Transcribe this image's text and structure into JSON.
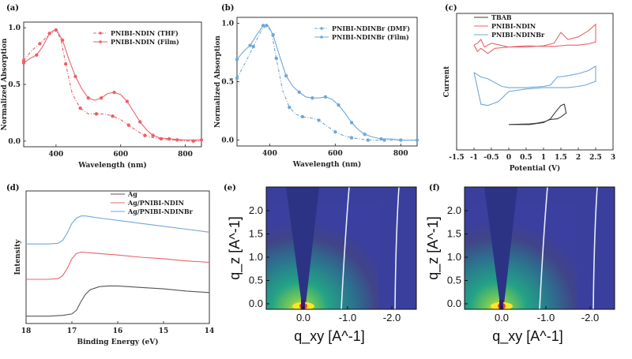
{
  "chart_data": [
    {
      "panel": "(a)",
      "type": "line",
      "xlabel": "Wavelength (nm)",
      "ylabel": "Normalized Absorption",
      "xlim": [
        300,
        850
      ],
      "ylim": [
        -0.05,
        1.05
      ],
      "xticks": [
        400,
        600,
        800
      ],
      "yticks": [
        0.0,
        0.5,
        1.0
      ],
      "legend_position": "top-right",
      "series": [
        {
          "name": "PNIBI-NDIN (THF)",
          "style": "dash-dot",
          "color": "#e8636a",
          "x": [
            300,
            325,
            350,
            375,
            400,
            415,
            430,
            450,
            475,
            500,
            525,
            550,
            575,
            600,
            625,
            650,
            675,
            700,
            725,
            750,
            775,
            800,
            825,
            850
          ],
          "y": [
            0.71,
            0.8,
            0.86,
            0.93,
            0.98,
            0.9,
            0.68,
            0.42,
            0.29,
            0.24,
            0.24,
            0.24,
            0.22,
            0.19,
            0.14,
            0.09,
            0.05,
            0.03,
            0.02,
            0.01,
            0.01,
            0.0,
            0.0,
            0.0
          ]
        },
        {
          "name": "PNIBI-NDIN (Film)",
          "style": "solid",
          "color": "#e8636a",
          "x": [
            300,
            320,
            340,
            360,
            380,
            400,
            420,
            440,
            460,
            480,
            500,
            520,
            540,
            560,
            580,
            600,
            620,
            640,
            660,
            680,
            700,
            720,
            750,
            800,
            850
          ],
          "y": [
            0.69,
            0.73,
            0.76,
            0.84,
            0.95,
            0.99,
            0.89,
            0.72,
            0.57,
            0.46,
            0.38,
            0.36,
            0.38,
            0.42,
            0.43,
            0.41,
            0.35,
            0.26,
            0.17,
            0.1,
            0.05,
            0.03,
            0.02,
            0.01,
            0.01
          ]
        }
      ]
    },
    {
      "panel": "(b)",
      "type": "line",
      "xlabel": "Wavelength (nm)",
      "ylabel": "Normalized Absorption",
      "xlim": [
        300,
        850
      ],
      "ylim": [
        -0.05,
        1.05
      ],
      "xticks": [
        400,
        600,
        800
      ],
      "yticks": [
        0.0,
        0.5,
        1.0
      ],
      "legend_position": "top-right",
      "series": [
        {
          "name": "PNIBI-NDINBr (DMF)",
          "style": "dash-dot",
          "color": "#6fa8d8",
          "x": [
            300,
            325,
            350,
            375,
            390,
            405,
            420,
            440,
            460,
            480,
            500,
            525,
            550,
            575,
            600,
            625,
            650,
            675,
            700,
            725,
            750,
            800,
            850
          ],
          "y": [
            0.53,
            0.66,
            0.8,
            0.94,
            0.98,
            0.93,
            0.7,
            0.42,
            0.28,
            0.22,
            0.2,
            0.19,
            0.17,
            0.12,
            0.07,
            0.04,
            0.02,
            0.01,
            0.0,
            0.0,
            0.0,
            0.0,
            0.0
          ]
        },
        {
          "name": "PNIBI-NDINBr (Film)",
          "style": "solid",
          "color": "#6fa8d8",
          "x": [
            300,
            320,
            340,
            360,
            380,
            395,
            410,
            430,
            450,
            470,
            490,
            510,
            530,
            550,
            570,
            590,
            610,
            630,
            650,
            670,
            690,
            710,
            740,
            770,
            800,
            850
          ],
          "y": [
            0.69,
            0.76,
            0.81,
            0.9,
            0.98,
            0.98,
            0.9,
            0.72,
            0.55,
            0.46,
            0.41,
            0.37,
            0.36,
            0.36,
            0.37,
            0.35,
            0.3,
            0.23,
            0.15,
            0.09,
            0.05,
            0.03,
            0.01,
            0.01,
            0.0,
            0.0
          ]
        }
      ]
    },
    {
      "panel": "(c)",
      "type": "line",
      "xlabel": "Potential (V)",
      "ylabel": "Current",
      "xlim": [
        -1.5,
        3.0
      ],
      "xticks": [
        -1.5,
        -1.0,
        -0.5,
        0.0,
        0.5,
        1.0,
        1.5,
        2.0,
        2.5,
        3.0
      ],
      "legend_position": "top-left",
      "series": [
        {
          "name": "TBAB",
          "color": "#3a3a3a",
          "x": [
            0.0,
            0.6,
            1.0,
            1.2,
            1.35,
            1.5,
            1.6,
            1.65,
            1.5,
            1.4,
            1.2,
            1.0,
            0.8,
            0.6,
            0.0
          ],
          "y": [
            0.0,
            0.0,
            0.03,
            0.09,
            0.2,
            0.3,
            0.32,
            0.18,
            0.12,
            0.09,
            0.08,
            0.04,
            0.02,
            0.01,
            0.0
          ]
        },
        {
          "name": "PNIBI-NDIN",
          "color": "#e8636a",
          "x": [
            -1.0,
            -0.9,
            -0.8,
            -0.6,
            -0.4,
            0.0,
            0.5,
            1.0,
            1.3,
            1.5,
            1.7,
            2.0,
            2.3,
            2.5,
            2.5,
            2.3,
            2.0,
            1.7,
            1.5,
            1.3,
            1.0,
            0.5,
            0.0,
            -0.5,
            -0.7,
            -0.8,
            -0.9,
            -1.0
          ],
          "y": [
            1.25,
            1.15,
            1.2,
            1.12,
            1.2,
            1.22,
            1.22,
            1.24,
            1.28,
            1.45,
            1.34,
            1.38,
            1.48,
            1.58,
            1.3,
            1.27,
            1.25,
            1.25,
            1.24,
            1.23,
            1.23,
            1.24,
            1.22,
            1.28,
            1.22,
            1.34,
            1.28,
            1.25
          ]
        },
        {
          "name": "PNIBI-NDINBr",
          "color": "#6fa8d8",
          "x": [
            -1.0,
            -0.8,
            -0.6,
            -0.4,
            -0.2,
            0.0,
            0.5,
            1.0,
            1.2,
            1.4,
            1.6,
            2.0,
            2.3,
            2.5,
            2.5,
            2.2,
            2.0,
            1.7,
            1.5,
            1.2,
            1.0,
            0.5,
            0.0,
            -0.3,
            -0.6,
            -0.8,
            -1.0
          ],
          "y": [
            0.82,
            0.75,
            0.72,
            0.66,
            0.6,
            0.58,
            0.58,
            0.6,
            0.62,
            0.75,
            0.76,
            0.8,
            0.85,
            0.92,
            0.68,
            0.62,
            0.6,
            0.58,
            0.58,
            0.58,
            0.58,
            0.56,
            0.52,
            0.36,
            0.3,
            0.32,
            0.82
          ]
        }
      ]
    },
    {
      "panel": "(d)",
      "type": "line",
      "xlabel": "Binding Energy (eV)",
      "ylabel": "Intensity",
      "xlim": [
        18,
        14
      ],
      "xticks": [
        18,
        17,
        16,
        15,
        14
      ],
      "legend_position": "top-right",
      "series": [
        {
          "name": "Ag",
          "color": "#555555",
          "x": [
            18.0,
            17.5,
            17.2,
            17.0,
            16.9,
            16.8,
            16.7,
            16.6,
            16.4,
            16.2,
            16.0,
            15.5,
            15.0,
            14.5,
            14.0
          ],
          "y": [
            0.0,
            0.0,
            0.01,
            0.03,
            0.08,
            0.2,
            0.3,
            0.36,
            0.4,
            0.41,
            0.41,
            0.39,
            0.37,
            0.34,
            0.32
          ]
        },
        {
          "name": "Ag/PNIBI-NDIN",
          "color": "#e8636a",
          "x": [
            18.0,
            17.5,
            17.3,
            17.2,
            17.1,
            17.0,
            16.9,
            16.8,
            16.6,
            16.4,
            16.0,
            15.5,
            15.0,
            14.5,
            14.0
          ],
          "y": [
            0.5,
            0.5,
            0.51,
            0.55,
            0.65,
            0.78,
            0.85,
            0.87,
            0.86,
            0.85,
            0.83,
            0.8,
            0.78,
            0.75,
            0.73
          ]
        },
        {
          "name": "Ag/PNIBI-NDINBr",
          "color": "#6fa8d8",
          "x": [
            18.0,
            17.5,
            17.3,
            17.2,
            17.1,
            17.0,
            16.9,
            16.8,
            16.7,
            16.5,
            16.0,
            15.5,
            15.0,
            14.5,
            14.0
          ],
          "y": [
            0.98,
            0.98,
            0.99,
            1.03,
            1.13,
            1.26,
            1.33,
            1.36,
            1.36,
            1.34,
            1.3,
            1.26,
            1.22,
            1.18,
            1.14
          ]
        }
      ]
    },
    {
      "panel": "(e)",
      "type": "heatmap",
      "xlabel": "q_xy [A^-1]",
      "ylabel": "q_z [A^-1]",
      "xticks": [
        "0.0",
        "-1.0",
        "-2.0"
      ],
      "yticks": [
        "0.0",
        "0.5",
        "1.0",
        "1.5",
        "2.0"
      ],
      "colormap": "viridis"
    },
    {
      "panel": "(f)",
      "type": "heatmap",
      "xlabel": "q_xy [A^-1]",
      "ylabel": "q_z [A^-1]",
      "xticks": [
        "0.0",
        "-1.0",
        "-2.0"
      ],
      "yticks": [
        "0.0",
        "0.5",
        "1.0",
        "1.5",
        "2.0"
      ],
      "colormap": "viridis"
    }
  ]
}
